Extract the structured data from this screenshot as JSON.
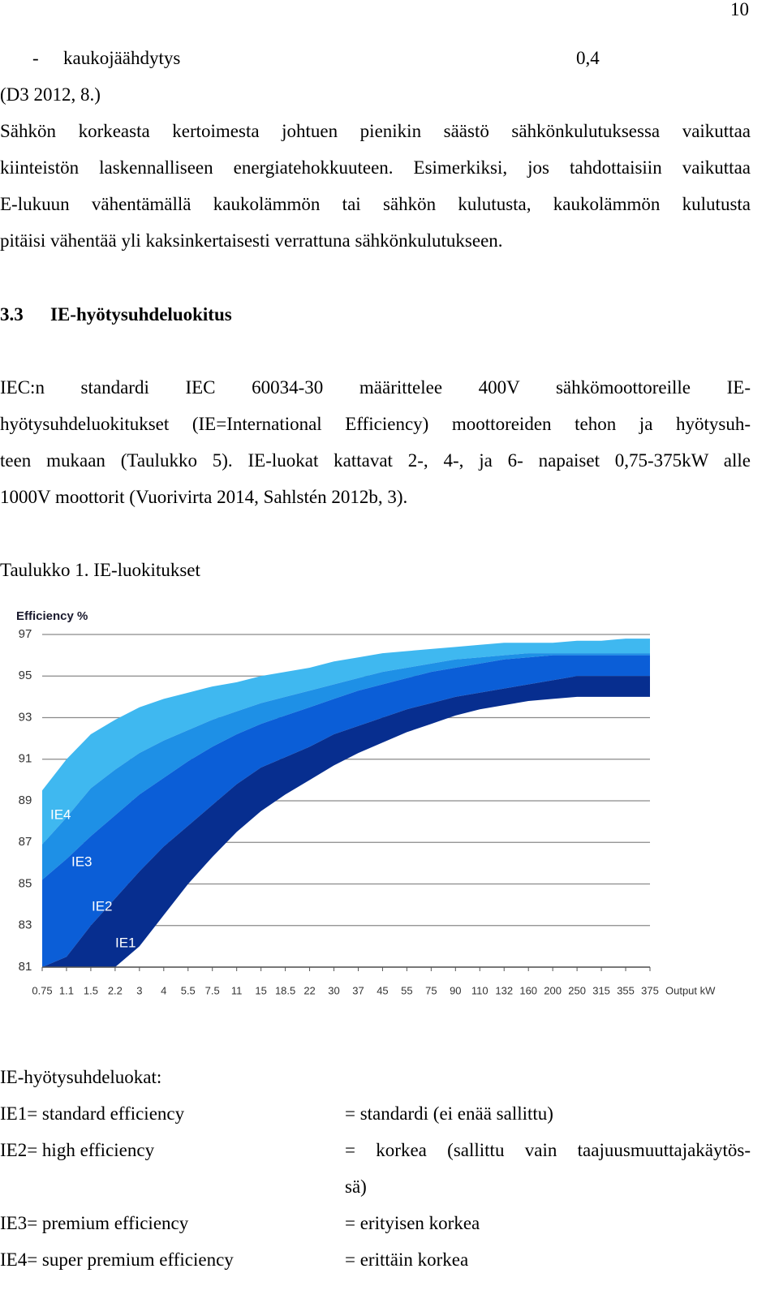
{
  "page_number": "10",
  "list_item": {
    "bullet": "-",
    "label": "kaukojäähdytys",
    "value": "0,4"
  },
  "source": "(D3 2012, 8.)",
  "paragraph_1": [
    "Sähkön korkeasta kertoimesta johtuen pienikin säästö sähkönkulutuksessa vaikuttaa",
    "kiinteistön laskennalliseen energiatehokkuuteen. Esimerkiksi, jos tahdottaisiin vaikuttaa",
    "E-lukuun vähentämällä kaukolämmön tai sähkön kulutusta, kaukolämmön kulutusta",
    "pitäisi vähentää yli kaksinkertaisesti verrattuna sähkönkulutukseen."
  ],
  "section": {
    "number": "3.3",
    "title": "IE-hyötysuhdeluokitus"
  },
  "paragraph_2": [
    "IEC:n standardi IEC 60034-30 määrittelee 400V sähkömoottoreille IE-",
    "hyötysuhdeluokitukset (IE=International Efficiency) moottoreiden tehon ja hyötysuh-",
    "teen mukaan (Taulukko 5). IE-luokat kattavat 2-, 4-, ja 6- napaiset 0,75-375kW alle",
    "1000V moottorit (Vuorivirta 2014, Sahlstén 2012b, 3)."
  ],
  "caption": "Taulukko 1. IE-luokitukset",
  "chart_data": {
    "type": "area",
    "ylabel": "Efficiency %",
    "xlabel": "Output kW",
    "categories": [
      "0.75",
      "1.1",
      "1.5",
      "2.2",
      "3",
      "4",
      "5.5",
      "7.5",
      "11",
      "15",
      "18.5",
      "22",
      "30",
      "37",
      "45",
      "55",
      "75",
      "90",
      "110",
      "132",
      "160",
      "200",
      "250",
      "315",
      "355",
      "375"
    ],
    "ylim": [
      81,
      97
    ],
    "yticks": [
      81,
      83,
      85,
      87,
      89,
      91,
      93,
      95,
      97
    ],
    "grid": true,
    "series": [
      {
        "name": "IE4",
        "color": "#3fb8f0",
        "values": [
          89.5,
          91.0,
          92.2,
          92.9,
          93.5,
          93.9,
          94.2,
          94.5,
          94.7,
          95.0,
          95.2,
          95.4,
          95.7,
          95.9,
          96.1,
          96.2,
          96.3,
          96.4,
          96.5,
          96.6,
          96.6,
          96.6,
          96.7,
          96.7,
          96.8,
          96.8
        ]
      },
      {
        "name": "IE3",
        "color": "#1e90e6",
        "values": [
          86.9,
          88.2,
          89.6,
          90.5,
          91.3,
          91.9,
          92.4,
          92.9,
          93.3,
          93.7,
          94.0,
          94.3,
          94.6,
          94.9,
          95.2,
          95.4,
          95.6,
          95.8,
          95.9,
          96.0,
          96.1,
          96.1,
          96.1,
          96.1,
          96.1,
          96.1
        ]
      },
      {
        "name": "IE2",
        "color": "#0b5ed7",
        "values": [
          85.2,
          86.2,
          87.3,
          88.3,
          89.3,
          90.1,
          90.9,
          91.6,
          92.2,
          92.7,
          93.1,
          93.5,
          93.9,
          94.3,
          94.6,
          94.9,
          95.2,
          95.4,
          95.6,
          95.8,
          95.9,
          96.0,
          96.0,
          96.0,
          96.0,
          96.0
        ]
      },
      {
        "name": "IE1",
        "color": "#072e8f",
        "values": [
          81.0,
          81.5,
          83.0,
          84.3,
          85.6,
          86.8,
          87.8,
          88.8,
          89.8,
          90.6,
          91.1,
          91.6,
          92.2,
          92.6,
          93.0,
          93.4,
          93.7,
          94.0,
          94.2,
          94.4,
          94.6,
          94.8,
          95.0,
          95.0,
          95.0,
          95.0
        ]
      }
    ],
    "floor": [
      81,
      81,
      81,
      81,
      82.0,
      83.5,
      85.0,
      86.3,
      87.5,
      88.5,
      89.3,
      90.0,
      90.7,
      91.3,
      91.8,
      92.3,
      92.7,
      93.1,
      93.4,
      93.6,
      93.8,
      93.9,
      94.0,
      94.0,
      94.0,
      94.0
    ]
  },
  "classes": {
    "title": "IE-hyötysuhdeluokat:",
    "rows": [
      {
        "term": "IE1= standard efficiency",
        "meaning": [
          "= standardi (ei enää sallittu)"
        ]
      },
      {
        "term": "IE2= high efficiency",
        "meaning": [
          "= korkea (sallittu vain taajuusmuuttajakäytös-",
          "sä)"
        ]
      },
      {
        "term": "IE3= premium efficiency",
        "meaning": [
          "= erityisen korkea"
        ]
      },
      {
        "term": "IE4= super premium efficiency",
        "meaning": [
          "= erittäin korkea"
        ]
      }
    ]
  }
}
